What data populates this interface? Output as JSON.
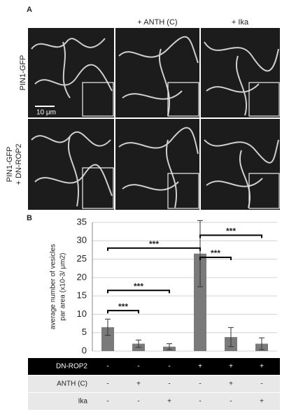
{
  "panel_a": {
    "label": "A",
    "columns": [
      "+ ANTH (C)",
      "+ Ika"
    ],
    "rows": [
      "PIN1-GFP",
      [
        "PIN1-GFP",
        "+ DN-ROP2"
      ]
    ],
    "scale_bar": "10 μm"
  },
  "chart_data": {
    "type": "bar",
    "label": "B",
    "y_label": [
      "average number of vesicles",
      "par area (x10-3/ μm2)"
    ],
    "categories": [
      null,
      null,
      null,
      null,
      null,
      null
    ],
    "values": [
      6.5,
      2,
      1.2,
      26.5,
      3.8,
      2
    ],
    "errors": [
      2.2,
      1,
      0.8,
      9,
      2.6,
      1.6
    ],
    "color": "#7a7a7a",
    "ylim": [
      0,
      35
    ],
    "yticks": [
      0,
      5,
      10,
      15,
      20,
      25,
      30,
      35
    ],
    "grid": true,
    "annotations": [
      {
        "text": "***",
        "from": 0,
        "to": 1
      },
      {
        "text": "***",
        "from": 0,
        "to": 2
      },
      {
        "text": "***",
        "from": 0,
        "to": 3
      },
      {
        "text": "***",
        "from": 3,
        "to": 4
      },
      {
        "text": "***",
        "from": 3,
        "to": 5
      }
    ]
  },
  "table": {
    "rows": [
      [
        "DN-ROP2",
        "-",
        "-",
        "-",
        "+",
        "+",
        "+"
      ],
      [
        "ANTH (C)",
        "-",
        "+",
        "-",
        "-",
        "+",
        "-"
      ],
      [
        "Ika",
        "-",
        "-",
        "+",
        "-",
        "-",
        "+"
      ]
    ]
  }
}
